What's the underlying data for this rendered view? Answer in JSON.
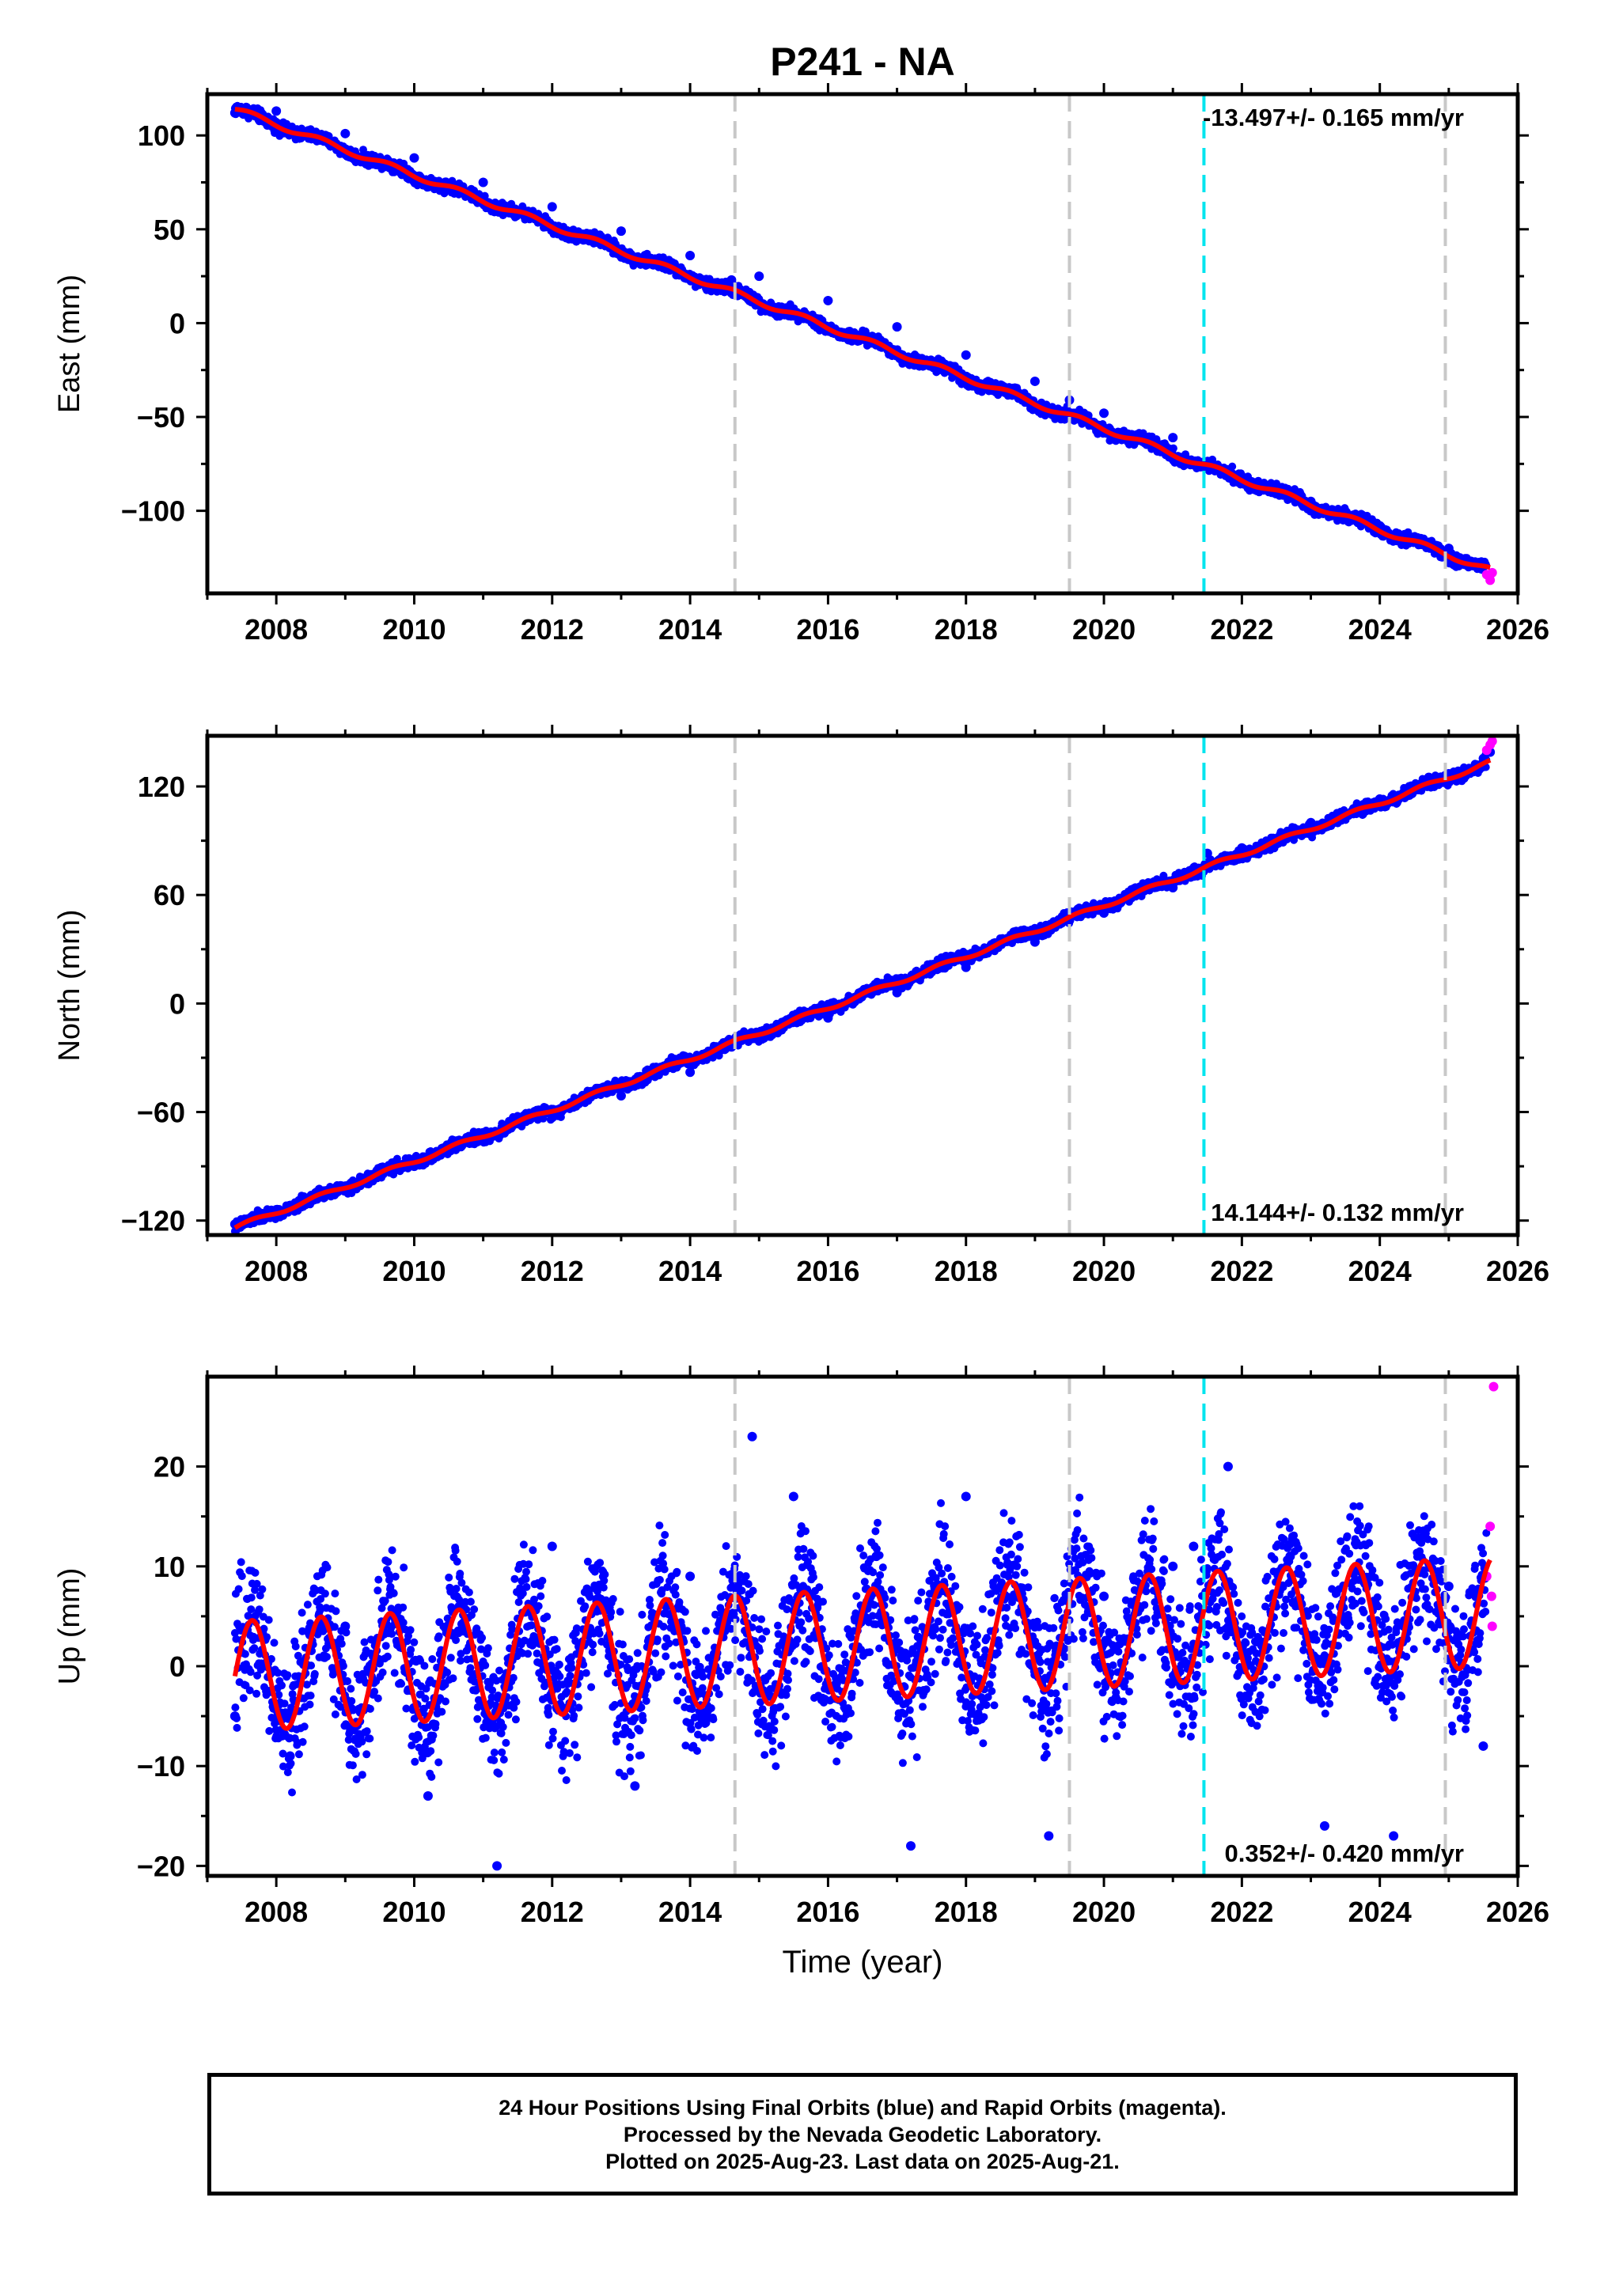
{
  "title": "P241 - NA",
  "colors": {
    "final_orbits": "#0000ff",
    "rapid_orbits": "#ff00ff",
    "model": "#ff0000",
    "equipment_change": "#c8c8c8",
    "earthquake": "#00e5ee"
  },
  "footer": {
    "line1": "24 Hour Positions Using Final Orbits (blue) and Rapid Orbits (magenta).",
    "line2": "Processed by the Nevada Geodetic Laboratory.",
    "line3": "Plotted on 2025-Aug-23. Last data on 2025-Aug-21."
  },
  "chart_data": [
    {
      "type": "scatter",
      "panel": "east",
      "ylabel": "East (mm)",
      "xlabel": "",
      "rate_label": "-13.497+/- 0.165 mm/yr",
      "rate_position": "top-right",
      "xlim": [
        2007.0,
        2026.0
      ],
      "ylim": [
        -144,
        122
      ],
      "x_ticks": [
        2008,
        2010,
        2012,
        2014,
        2016,
        2018,
        2020,
        2022,
        2024,
        2026
      ],
      "y_ticks": [
        -100,
        -50,
        0,
        50,
        100
      ],
      "y_tick_labels": [
        "−100",
        "−50",
        "0",
        "50",
        "100"
      ],
      "grid": false,
      "series": [
        {
          "color": "#0000ff",
          "x": [
            2007.4,
            2008.0,
            2009.0,
            2010.0,
            2011.0,
            2012.0,
            2013.0,
            2014.0,
            2014.6,
            2015.0,
            2016.0,
            2017.0,
            2018.0,
            2019.0,
            2019.5,
            2020.0,
            2021.0,
            2021.5,
            2022.0,
            2023.0,
            2024.0,
            2025.0,
            2025.6
          ],
          "y": [
            112,
            113,
            101,
            88,
            75,
            62,
            49,
            36,
            23,
            25,
            12,
            -2,
            -17,
            -31,
            -41,
            -48,
            -61,
            -76,
            -84,
            -95,
            -108,
            -120,
            -134
          ]
        },
        {
          "color": "#ff00ff",
          "x": [
            2025.55,
            2025.6,
            2025.63
          ],
          "y": [
            -134,
            -137,
            -133
          ]
        }
      ],
      "model_line": {
        "color": "#ff0000",
        "offset_mm": 114.0,
        "t0": 2007.4,
        "rate_mm_yr": -13.497,
        "annual_amplitude_mm": 1.5
      },
      "equipment_changes": [
        2014.65,
        2019.5,
        2024.95
      ],
      "earthquakes": [
        2021.45
      ]
    },
    {
      "type": "scatter",
      "panel": "north",
      "ylabel": "North (mm)",
      "xlabel": "",
      "rate_label": "14.144+/- 0.132 mm/yr",
      "rate_position": "bottom-right",
      "xlim": [
        2007.0,
        2026.0
      ],
      "ylim": [
        -128,
        148
      ],
      "x_ticks": [
        2008,
        2010,
        2012,
        2014,
        2016,
        2018,
        2020,
        2022,
        2024,
        2026
      ],
      "y_ticks": [
        -120,
        -60,
        0,
        60,
        120
      ],
      "y_tick_labels": [
        "−120",
        "−60",
        "0",
        "60",
        "120"
      ],
      "grid": false,
      "series": [
        {
          "color": "#0000ff",
          "x": [
            2007.4,
            2008.0,
            2009.0,
            2010.0,
            2011.0,
            2012.0,
            2013.0,
            2014.0,
            2014.6,
            2015.0,
            2016.0,
            2017.0,
            2018.0,
            2019.0,
            2019.5,
            2020.0,
            2021.0,
            2021.5,
            2022.0,
            2023.0,
            2024.0,
            2025.0,
            2025.6
          ],
          "y": [
            -122,
            -114,
            -101,
            -90,
            -76,
            -63,
            -51,
            -38,
            -24,
            -19,
            -8,
            6,
            20,
            34,
            46,
            50,
            64,
            83,
            86,
            100,
            113,
            127,
            139
          ]
        },
        {
          "color": "#ff00ff",
          "x": [
            2025.55,
            2025.6,
            2025.63
          ],
          "y": [
            140,
            143,
            145
          ]
        }
      ],
      "model_line": {
        "color": "#ff0000",
        "offset_mm": -124.0,
        "t0": 2007.4,
        "rate_mm_yr": 14.144,
        "annual_amplitude_mm": 1.2
      },
      "equipment_changes": [
        2014.65,
        2019.5,
        2024.95
      ],
      "earthquakes": [
        2021.45
      ]
    },
    {
      "type": "scatter",
      "panel": "up",
      "ylabel": "Up (mm)",
      "xlabel": "Time (year)",
      "rate_label": "0.352+/- 0.420 mm/yr",
      "rate_position": "bottom-right",
      "xlim": [
        2007.0,
        2026.0
      ],
      "ylim": [
        -21,
        29
      ],
      "x_ticks": [
        2008,
        2010,
        2012,
        2014,
        2016,
        2018,
        2020,
        2022,
        2024,
        2026
      ],
      "y_ticks": [
        -20,
        -10,
        0,
        10,
        20
      ],
      "y_tick_labels": [
        "−20",
        "−10",
        "0",
        "10",
        "20"
      ],
      "grid": false,
      "series": [
        {
          "color": "#0000ff",
          "x": [
            2007.4,
            2008.2,
            2009.0,
            2010.2,
            2011.2,
            2012.0,
            2013.2,
            2014.0,
            2014.9,
            2015.5,
            2016.7,
            2017.2,
            2018.0,
            2019.2,
            2020.0,
            2021.0,
            2021.3,
            2021.8,
            2022.7,
            2023.2,
            2024.2,
            2025.0,
            2025.5
          ],
          "y": [
            -5,
            -9,
            4,
            -13,
            -20,
            12,
            -12,
            9,
            23,
            17,
            11,
            -18,
            17,
            -17,
            7,
            10,
            12,
            20,
            11,
            -16,
            -17,
            8,
            -8
          ]
        },
        {
          "color": "#ff00ff",
          "x": [
            2025.55,
            2025.6,
            2025.62,
            2025.63,
            2025.65
          ],
          "y": [
            9,
            14,
            7,
            4,
            28
          ]
        }
      ],
      "model_line": {
        "color": "#ff0000",
        "offset_mm": -1.0,
        "t0": 2007.4,
        "rate_mm_yr": 0.352,
        "annual_amplitude_mm": 5.5
      },
      "equipment_changes": [
        2014.65,
        2019.5,
        2024.95
      ],
      "earthquakes": [
        2021.45
      ]
    }
  ]
}
